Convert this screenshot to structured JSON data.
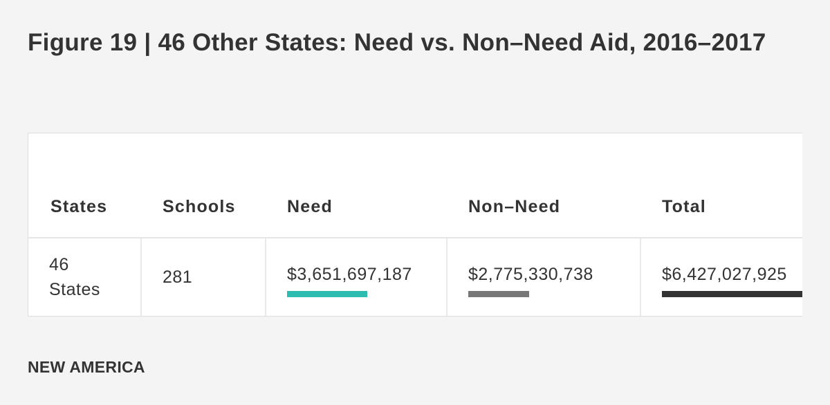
{
  "header": {
    "title": "Figure 19 | 46 Other States: Need vs. Non–Need Aid, 2016–2017"
  },
  "table": {
    "columns": [
      "States",
      "Schools",
      "Need",
      "Non–Need",
      "Total"
    ],
    "bar_colors": [
      null,
      null,
      "#2dbdb0",
      "#777777",
      "#333333"
    ],
    "rows": [
      [
        "46 States",
        "281",
        {
          "value": 3651697187,
          "label": "$3,651,697,187"
        },
        {
          "value": 2775330738,
          "label": "$2,775,330,738"
        },
        {
          "value": 6427027925,
          "label": "$6,427,027,925"
        }
      ]
    ]
  },
  "footer": {
    "brand": "NEW AMERICA"
  }
}
